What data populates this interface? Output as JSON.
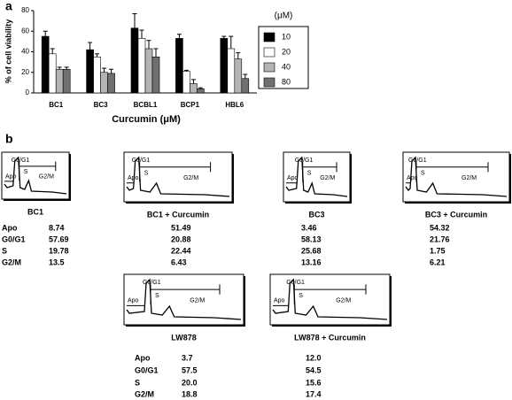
{
  "chart_data": {
    "type": "bar",
    "panel_label": "a",
    "y_label": "% of cell viability",
    "x_label": "Curcumin (μM)",
    "legend_title": "(μM)",
    "categories": [
      "BC1",
      "BC3",
      "BCBL1",
      "BCP1",
      "HBL6"
    ],
    "series": [
      {
        "name": "10",
        "color": "#000000",
        "values": [
          55,
          42,
          63,
          53,
          53
        ],
        "errors": [
          5,
          7,
          14,
          4,
          2
        ]
      },
      {
        "name": "20",
        "color": "#ffffff",
        "values": [
          38,
          35,
          53,
          21,
          43
        ],
        "errors": [
          5,
          3,
          8,
          1,
          12
        ]
      },
      {
        "name": "40",
        "color": "#b4b4b4",
        "values": [
          23,
          20,
          43,
          9,
          33
        ],
        "errors": [
          2,
          4,
          8,
          4,
          6
        ]
      },
      {
        "name": "80",
        "color": "#707070",
        "values": [
          23,
          19,
          35,
          4,
          14
        ],
        "errors": [
          2,
          4,
          8,
          1,
          4
        ]
      }
    ],
    "ylim": [
      0,
      80
    ],
    "yticks": [
      0,
      20,
      40,
      60,
      80
    ]
  },
  "panel_b": {
    "label": "b",
    "gate_labels": [
      "Apo",
      "G0/G1",
      "S",
      "G2/M"
    ],
    "row_labels": [
      "Apo",
      "G0/G1",
      "S",
      "G2/M"
    ],
    "samples": [
      {
        "name": "BC1",
        "values": [
          "8.74",
          "57.69",
          "19.78",
          "13.5"
        ]
      },
      {
        "name": "BC1 + Curcumin",
        "values": [
          "51.49",
          "20.88",
          "22.44",
          "6.43"
        ]
      },
      {
        "name": "BC3",
        "values": [
          "3.46",
          "58.13",
          "25.68",
          "13.16"
        ]
      },
      {
        "name": "BC3 + Curcumin",
        "values": [
          "54.32",
          "21.76",
          "1.75",
          "6.21"
        ]
      },
      {
        "name": "LW878",
        "values": [
          "3.7",
          "57.5",
          "20.0",
          "18.8"
        ]
      },
      {
        "name": "LW878 + Curcumin",
        "values": [
          "12.0",
          "54.5",
          "15.6",
          "17.4"
        ]
      }
    ]
  }
}
